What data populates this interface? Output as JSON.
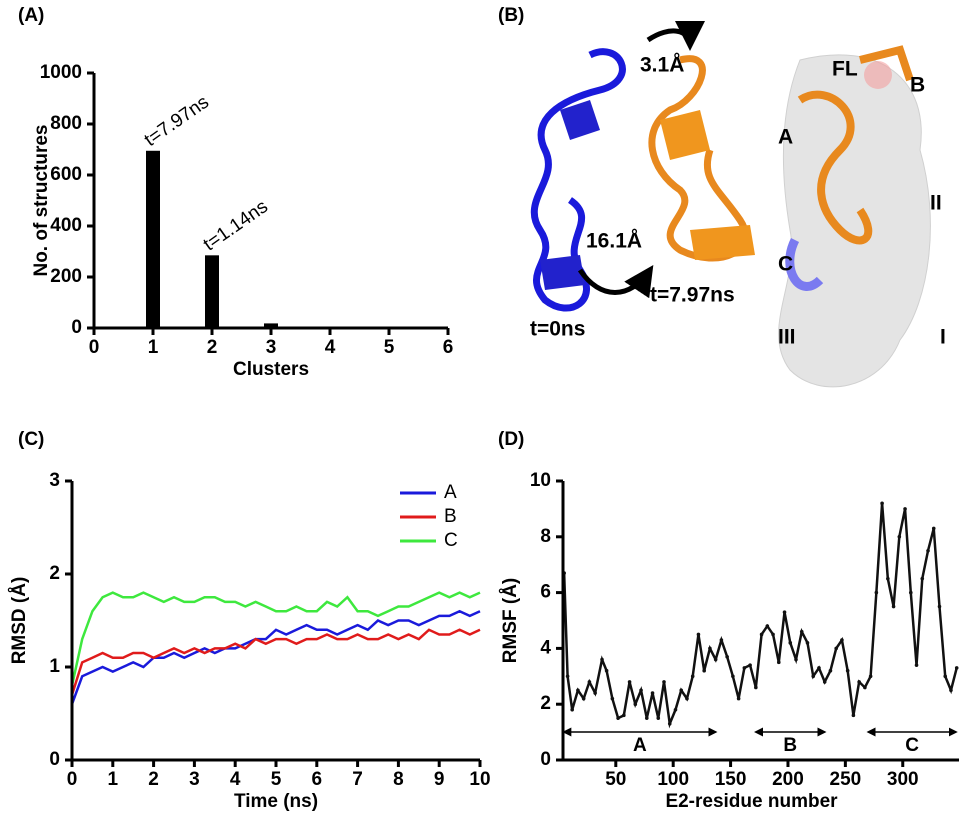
{
  "panel_labels": [
    "(A)",
    "(B)",
    "(C)",
    "(D)"
  ],
  "panel_b": {
    "labels": [
      "3.1Å",
      "16.1Å",
      "t=7.97ns",
      "t=0ns",
      "FL",
      "B",
      "A",
      "II",
      "C",
      "III",
      "I"
    ]
  },
  "chart_data": [
    {
      "type": "bar",
      "xlabel": "Clusters",
      "ylabel": "No. of structures",
      "x": [
        1,
        2,
        3
      ],
      "values": [
        695,
        285,
        18
      ],
      "bar_labels": [
        "t=7.97ns",
        "t=1.14ns",
        null
      ],
      "color": "#000000",
      "xlim": [
        0,
        6
      ],
      "xticks": [
        0,
        1,
        2,
        3,
        4,
        5,
        6
      ],
      "ylim": [
        0,
        1000
      ],
      "yticks": [
        0,
        200,
        400,
        600,
        800,
        1000
      ]
    },
    {
      "type": "line",
      "xlabel": "Time (ns)",
      "ylabel": "RMSD (Å)",
      "legend": "upper right",
      "x": [
        0,
        0.25,
        0.5,
        0.75,
        1,
        1.25,
        1.5,
        1.75,
        2,
        2.25,
        2.5,
        2.75,
        3,
        3.25,
        3.5,
        3.75,
        4,
        4.25,
        4.5,
        4.75,
        5,
        5.25,
        5.5,
        5.75,
        6,
        6.25,
        6.5,
        6.75,
        7,
        7.25,
        7.5,
        7.75,
        8,
        8.25,
        8.5,
        8.75,
        9,
        9.25,
        9.5,
        9.75,
        10
      ],
      "series": [
        {
          "name": "A",
          "color": "#1a1adb",
          "values": [
            0.6,
            0.9,
            0.95,
            1.0,
            0.95,
            1.0,
            1.05,
            1.0,
            1.1,
            1.1,
            1.15,
            1.1,
            1.15,
            1.2,
            1.15,
            1.2,
            1.2,
            1.25,
            1.3,
            1.3,
            1.4,
            1.35,
            1.4,
            1.45,
            1.4,
            1.4,
            1.35,
            1.4,
            1.45,
            1.4,
            1.5,
            1.45,
            1.5,
            1.5,
            1.45,
            1.5,
            1.55,
            1.55,
            1.6,
            1.55,
            1.6
          ]
        },
        {
          "name": "B",
          "color": "#e01b1b",
          "values": [
            0.7,
            1.05,
            1.1,
            1.15,
            1.1,
            1.1,
            1.15,
            1.15,
            1.1,
            1.15,
            1.2,
            1.15,
            1.2,
            1.15,
            1.2,
            1.2,
            1.25,
            1.2,
            1.3,
            1.25,
            1.3,
            1.3,
            1.25,
            1.3,
            1.3,
            1.35,
            1.3,
            1.3,
            1.35,
            1.3,
            1.3,
            1.35,
            1.3,
            1.35,
            1.3,
            1.4,
            1.35,
            1.35,
            1.4,
            1.35,
            1.4
          ]
        },
        {
          "name": "C",
          "color": "#3ee83e",
          "values": [
            0.8,
            1.3,
            1.6,
            1.75,
            1.8,
            1.75,
            1.75,
            1.8,
            1.75,
            1.7,
            1.75,
            1.7,
            1.7,
            1.75,
            1.75,
            1.7,
            1.7,
            1.65,
            1.7,
            1.65,
            1.6,
            1.6,
            1.65,
            1.6,
            1.6,
            1.7,
            1.65,
            1.75,
            1.6,
            1.6,
            1.55,
            1.6,
            1.65,
            1.65,
            1.7,
            1.75,
            1.8,
            1.75,
            1.8,
            1.75,
            1.8
          ]
        }
      ],
      "xlim": [
        0,
        10
      ],
      "xticks": [
        0,
        1,
        2,
        3,
        4,
        5,
        6,
        7,
        8,
        9,
        10
      ],
      "ylim": [
        0,
        3
      ],
      "yticks": [
        0,
        1,
        2,
        3
      ]
    },
    {
      "type": "line",
      "xlabel": "E2-residue number",
      "ylabel": "RMSF (Å)",
      "x": [
        5,
        8,
        12,
        17,
        22,
        27,
        32,
        38,
        42,
        47,
        52,
        57,
        62,
        67,
        72,
        77,
        82,
        87,
        92,
        97,
        102,
        107,
        112,
        117,
        122,
        127,
        132,
        137,
        142,
        147,
        152,
        157,
        162,
        167,
        172,
        177,
        182,
        187,
        192,
        197,
        202,
        207,
        212,
        217,
        222,
        227,
        232,
        237,
        242,
        247,
        252,
        257,
        262,
        267,
        272,
        277,
        282,
        287,
        292,
        297,
        302,
        307,
        312,
        317,
        322,
        327,
        332,
        337,
        342,
        347
      ],
      "series": [
        {
          "name": null,
          "color": "#111111",
          "values": [
            6.7,
            3,
            1.8,
            2.5,
            2.2,
            2.8,
            2.4,
            3.6,
            3.2,
            2.2,
            1.5,
            1.6,
            2.8,
            2.0,
            2.5,
            1.5,
            2.4,
            1.5,
            2.8,
            1.3,
            1.8,
            2.5,
            2.2,
            3.0,
            4.5,
            3.2,
            4.0,
            3.6,
            4.3,
            3.7,
            3.0,
            2.2,
            3.3,
            3.4,
            2.6,
            4.5,
            4.8,
            4.5,
            3.5,
            5.3,
            4.2,
            3.6,
            4.6,
            4.2,
            3.0,
            3.3,
            2.8,
            3.2,
            4.0,
            4.3,
            3.2,
            1.6,
            2.8,
            2.6,
            3.0,
            6.0,
            9.2,
            6.5,
            5.5,
            8.0,
            9.0,
            6.0,
            3.4,
            6.5,
            7.5,
            8.3,
            5.5,
            3.0,
            2.5,
            3.3
          ]
        }
      ],
      "ranges": [
        {
          "label": "A",
          "start": 5,
          "end": 137
        },
        {
          "label": "B",
          "start": 172,
          "end": 232
        },
        {
          "label": "C",
          "start": 270,
          "end": 349
        }
      ],
      "xlim": [
        4,
        349
      ],
      "xticks": [
        50,
        100,
        150,
        200,
        250,
        300
      ],
      "ylim": [
        0,
        10
      ],
      "yticks": [
        0,
        2,
        4,
        6,
        8,
        10
      ]
    }
  ]
}
